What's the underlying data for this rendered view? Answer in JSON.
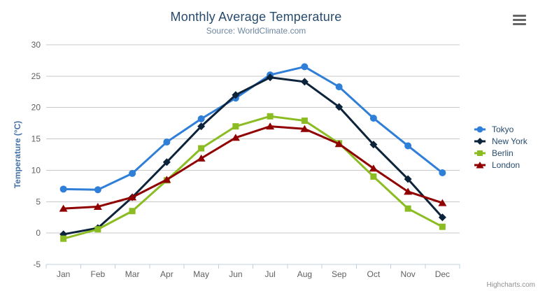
{
  "chart_data": {
    "type": "line",
    "title": "Monthly Average Temperature",
    "subtitle": "Source: WorldClimate.com",
    "categories": [
      "Jan",
      "Feb",
      "Mar",
      "Apr",
      "May",
      "Jun",
      "Jul",
      "Aug",
      "Sep",
      "Oct",
      "Nov",
      "Dec"
    ],
    "series": [
      {
        "name": "Tokyo",
        "color": "#2f7ed8",
        "marker": "circle",
        "values": [
          7.0,
          6.9,
          9.5,
          14.5,
          18.2,
          21.5,
          25.2,
          26.5,
          23.3,
          18.3,
          13.9,
          9.6
        ]
      },
      {
        "name": "New York",
        "color": "#0d233a",
        "marker": "diamond",
        "values": [
          -0.2,
          0.8,
          5.7,
          11.3,
          17.0,
          22.0,
          24.8,
          24.1,
          20.1,
          14.1,
          8.6,
          2.5
        ]
      },
      {
        "name": "Berlin",
        "color": "#8bbc21",
        "marker": "square",
        "values": [
          -0.9,
          0.6,
          3.5,
          8.4,
          13.5,
          17.0,
          18.6,
          17.9,
          14.3,
          9.0,
          3.9,
          1.0
        ]
      },
      {
        "name": "London",
        "color": "#910000",
        "marker": "triangle",
        "values": [
          3.9,
          4.2,
          5.7,
          8.5,
          11.9,
          15.2,
          17.0,
          16.6,
          14.2,
          10.3,
          6.6,
          4.8
        ]
      }
    ],
    "xlabel": "",
    "ylabel": "Temperature (°C)",
    "ylim": [
      -5,
      30
    ],
    "yticks": [
      -5,
      0,
      5,
      10,
      15,
      20,
      25,
      30
    ],
    "grid": true,
    "legend_position": "right",
    "credits": "Highcharts.com"
  },
  "icons": {
    "export_menu": "hamburger-menu-icon"
  },
  "colors": {
    "title": "#274b6d",
    "subtitle": "#6d869f",
    "y_axis_title": "#4572a7",
    "axis_label": "#606060",
    "axis_line": "#c0d0e0",
    "gridline": "#c8c8c8",
    "legend_text": "#274b6d",
    "credits": "#909090",
    "export_icon": "#666666"
  }
}
